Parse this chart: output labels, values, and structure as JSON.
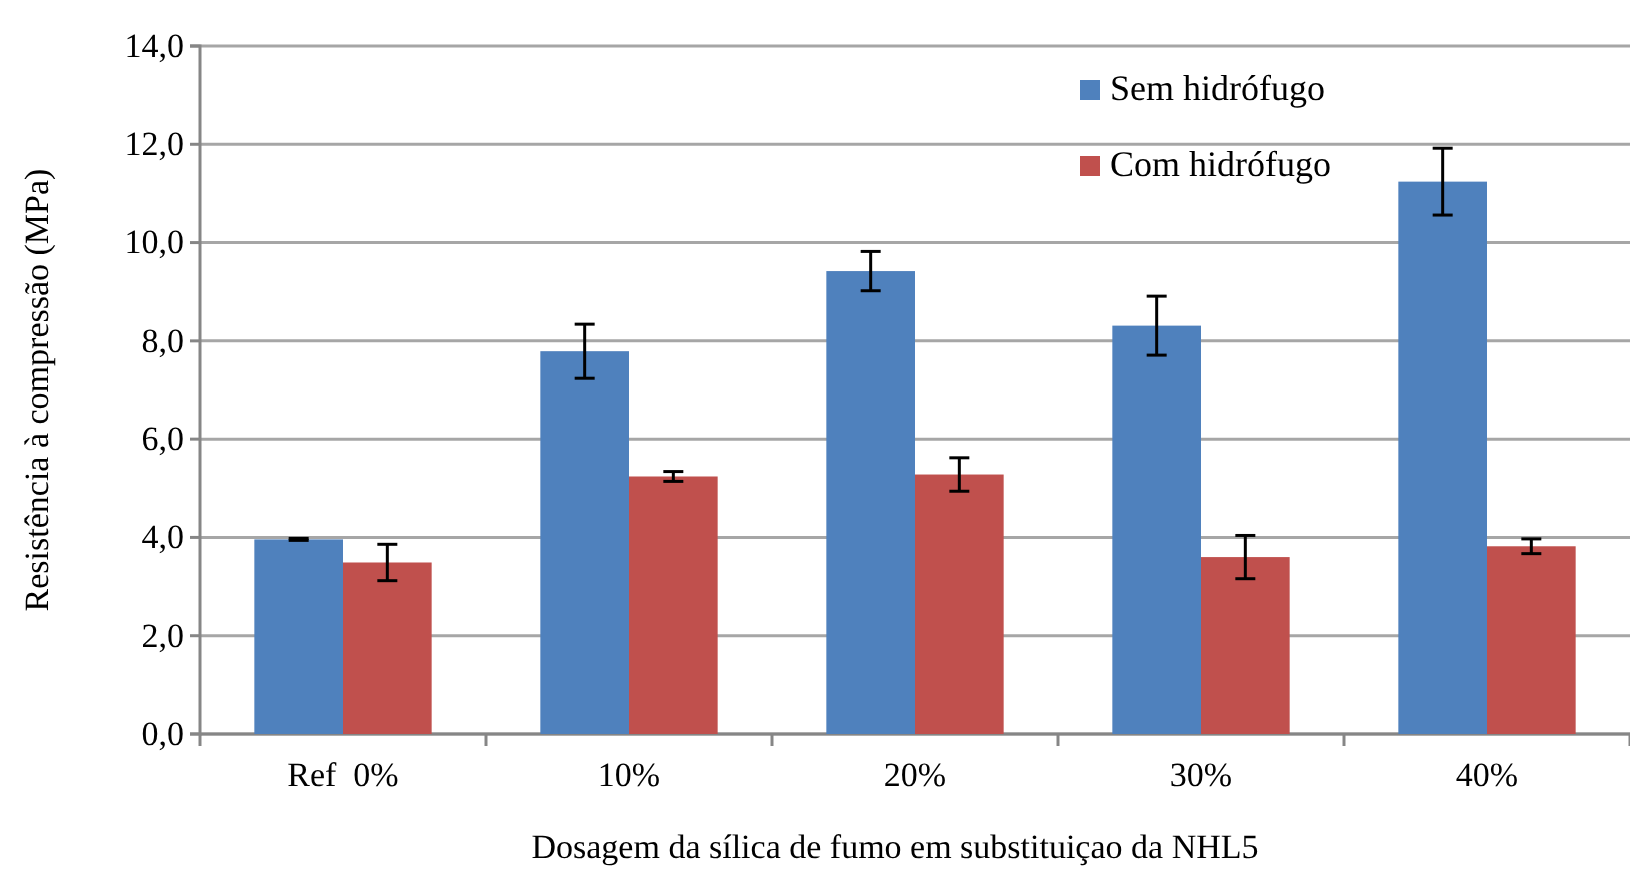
{
  "chart_data": {
    "type": "bar",
    "categories": [
      "Ref  0%",
      "10%",
      "20%",
      "30%",
      "40%"
    ],
    "series": [
      {
        "name": "Sem hidrófugo",
        "color": "#4f81bd",
        "values": [
          3.96,
          7.79,
          9.42,
          8.31,
          11.24
        ],
        "errors": [
          0.02,
          0.55,
          0.4,
          0.6,
          0.68
        ]
      },
      {
        "name": "Com hidrófugo",
        "color": "#c0504d",
        "values": [
          3.49,
          5.24,
          5.28,
          3.6,
          3.82
        ],
        "errors": [
          0.37,
          0.1,
          0.34,
          0.44,
          0.15
        ]
      }
    ],
    "xlabel": "Dosagem da sílica de fumo em substituiçao da NHL5",
    "ylabel": "Resistência à compressão (MPa)",
    "ylim": [
      0,
      14
    ],
    "yticks": [
      {
        "value": 0,
        "label": "0,0"
      },
      {
        "value": 2,
        "label": "2,0"
      },
      {
        "value": 4,
        "label": "4,0"
      },
      {
        "value": 6,
        "label": "6,0"
      },
      {
        "value": 8,
        "label": "8,0"
      },
      {
        "value": 10,
        "label": "10,0"
      },
      {
        "value": 12,
        "label": "12,0"
      },
      {
        "value": 14,
        "label": "14,0"
      }
    ],
    "grid": "y",
    "legend": "top right"
  }
}
